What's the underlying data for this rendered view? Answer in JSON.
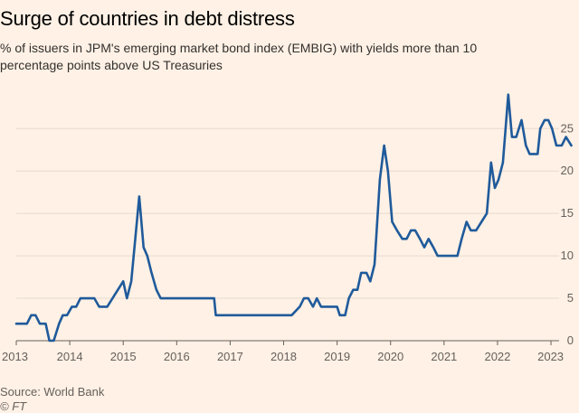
{
  "header": {
    "title": "Surge of countries in debt distress",
    "subtitle": "% of issuers in JPM's emerging market bond index (EMBIG) with yields more than 10 percentage points above US Treasuries"
  },
  "footer": {
    "source": "Source: World Bank",
    "credit": "© FT"
  },
  "colors": {
    "line": "#1f5a9b",
    "grid": "#e6d9ce",
    "background": "#fff1e5"
  },
  "chart_data": {
    "type": "line",
    "title": "Surge of countries in debt distress",
    "xlabel": "",
    "ylabel": "",
    "xlim": [
      2013.0,
      2023.05
    ],
    "ylim": [
      0,
      25
    ],
    "yticks": [
      0,
      5,
      10,
      15,
      20,
      25
    ],
    "xticks": [
      2013,
      2014,
      2015,
      2016,
      2017,
      2018,
      2019,
      2020,
      2021,
      2022,
      2023
    ],
    "ytick_labels": [
      "0",
      "5",
      "10",
      "15",
      "20",
      "25"
    ],
    "xtick_labels": [
      "2013",
      "2014",
      "2015",
      "2016",
      "2017",
      "2018",
      "2019",
      "2020",
      "2021",
      "2022",
      "2023"
    ],
    "grid": true,
    "series": [
      {
        "name": "% of issuers with yields >10pp above US Treasuries",
        "points": [
          [
            2013.0,
            2
          ],
          [
            2013.2,
            2
          ],
          [
            2013.28,
            3
          ],
          [
            2013.36,
            3
          ],
          [
            2013.44,
            2
          ],
          [
            2013.55,
            2
          ],
          [
            2013.62,
            0
          ],
          [
            2013.7,
            0
          ],
          [
            2013.8,
            2
          ],
          [
            2013.87,
            3
          ],
          [
            2013.95,
            3
          ],
          [
            2014.04,
            4
          ],
          [
            2014.12,
            4
          ],
          [
            2014.2,
            5
          ],
          [
            2014.3,
            5
          ],
          [
            2014.46,
            5
          ],
          [
            2014.55,
            4
          ],
          [
            2014.7,
            4
          ],
          [
            2014.8,
            5
          ],
          [
            2014.9,
            6
          ],
          [
            2015.0,
            7
          ],
          [
            2015.07,
            5
          ],
          [
            2015.15,
            7
          ],
          [
            2015.24,
            13
          ],
          [
            2015.3,
            17
          ],
          [
            2015.38,
            11
          ],
          [
            2015.45,
            10
          ],
          [
            2015.53,
            8
          ],
          [
            2015.62,
            6
          ],
          [
            2015.7,
            5
          ],
          [
            2016.0,
            5
          ],
          [
            2016.5,
            5
          ],
          [
            2016.7,
            5
          ],
          [
            2016.73,
            3
          ],
          [
            2017.0,
            3
          ],
          [
            2017.5,
            3
          ],
          [
            2018.0,
            3
          ],
          [
            2018.15,
            3
          ],
          [
            2018.3,
            4
          ],
          [
            2018.38,
            5
          ],
          [
            2018.46,
            5
          ],
          [
            2018.55,
            4
          ],
          [
            2018.62,
            5
          ],
          [
            2018.7,
            4
          ],
          [
            2018.85,
            4
          ],
          [
            2019.0,
            4
          ],
          [
            2019.05,
            3
          ],
          [
            2019.15,
            3
          ],
          [
            2019.22,
            5
          ],
          [
            2019.3,
            6
          ],
          [
            2019.38,
            6
          ],
          [
            2019.45,
            8
          ],
          [
            2019.55,
            8
          ],
          [
            2019.62,
            7
          ],
          [
            2019.7,
            9
          ],
          [
            2019.8,
            19
          ],
          [
            2019.88,
            23
          ],
          [
            2019.95,
            20
          ],
          [
            2020.03,
            14
          ],
          [
            2020.12,
            13
          ],
          [
            2020.22,
            12
          ],
          [
            2020.3,
            12
          ],
          [
            2020.38,
            13
          ],
          [
            2020.46,
            13
          ],
          [
            2020.55,
            12
          ],
          [
            2020.63,
            11
          ],
          [
            2020.71,
            12
          ],
          [
            2020.8,
            11
          ],
          [
            2020.88,
            10
          ],
          [
            2021.0,
            10
          ],
          [
            2021.2,
            10
          ],
          [
            2021.25,
            10
          ],
          [
            2021.33,
            12
          ],
          [
            2021.42,
            14
          ],
          [
            2021.5,
            13
          ],
          [
            2021.6,
            13
          ],
          [
            2021.7,
            14
          ],
          [
            2021.8,
            15
          ],
          [
            2021.88,
            21
          ],
          [
            2021.95,
            18
          ],
          [
            2022.02,
            19
          ],
          [
            2022.1,
            21
          ],
          [
            2022.2,
            29
          ],
          [
            2022.27,
            24
          ],
          [
            2022.35,
            24
          ],
          [
            2022.45,
            26
          ],
          [
            2022.53,
            23
          ],
          [
            2022.6,
            22
          ],
          [
            2022.75,
            22
          ],
          [
            2022.8,
            25
          ],
          [
            2022.88,
            26
          ],
          [
            2022.95,
            26
          ],
          [
            2023.02,
            25
          ],
          [
            2023.1,
            23
          ],
          [
            2023.2,
            23
          ],
          [
            2023.28,
            24
          ],
          [
            2023.38,
            23
          ]
        ]
      }
    ]
  }
}
